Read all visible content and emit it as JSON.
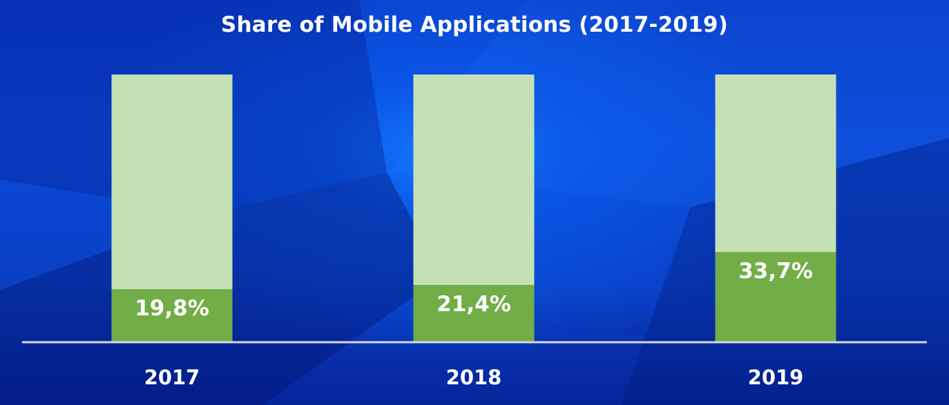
{
  "chart_data": {
    "type": "bar",
    "title": "Share of Mobile Applications (2017-2019)",
    "categories": [
      "2017",
      "2018",
      "2019"
    ],
    "values": [
      19.8,
      21.4,
      33.7
    ],
    "value_labels": [
      "19,8%",
      "21,4%",
      "33,7%"
    ],
    "ylim": [
      0,
      100
    ],
    "stacked_total": 100,
    "grid": false,
    "legend": "none",
    "colors": {
      "share": "#72ad47",
      "remainder": "#c5e0b4",
      "axis": "#d9d9e6",
      "text": "#ffffff"
    }
  }
}
